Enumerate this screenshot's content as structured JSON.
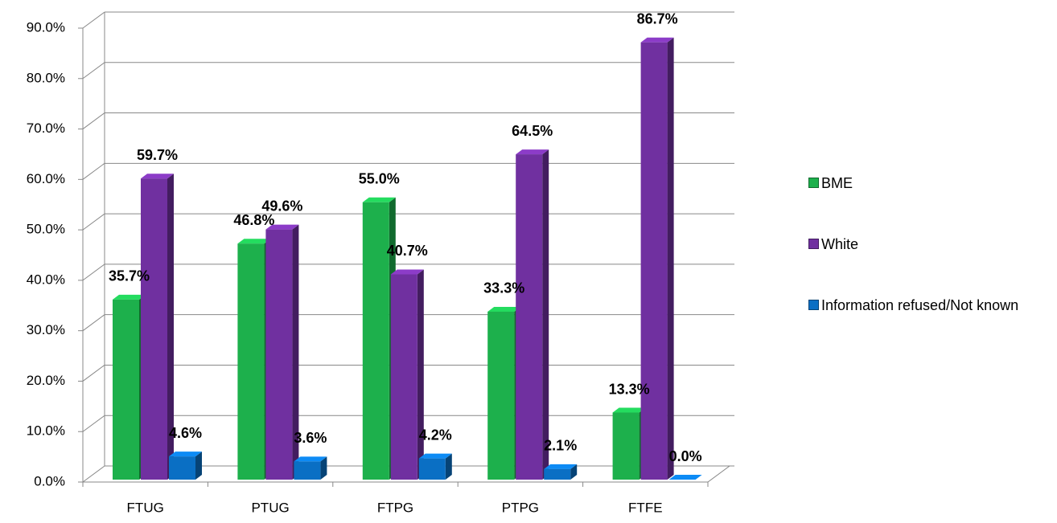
{
  "chart_data": {
    "type": "bar3d",
    "categories": [
      "FTUG",
      "PTUG",
      "FTPG",
      "PTPG",
      "FTFE"
    ],
    "series": [
      {
        "name": "BME",
        "color": "#1db04c",
        "values": [
          35.7,
          46.8,
          55.0,
          33.3,
          13.3
        ],
        "value_labels": [
          "35.7%",
          "46.8%",
          "55.0%",
          "33.3%",
          "13.3%"
        ]
      },
      {
        "name": "White",
        "color": "#7030a0",
        "values": [
          59.7,
          49.6,
          40.7,
          64.5,
          86.7
        ],
        "value_labels": [
          "59.7%",
          "49.6%",
          "40.7%",
          "64.5%",
          "86.7%"
        ]
      },
      {
        "name": "Information refused/Not known",
        "color": "#0a6fc4",
        "values": [
          4.6,
          3.6,
          4.2,
          2.1,
          0.0
        ],
        "value_labels": [
          "4.6%",
          "3.6%",
          "4.2%",
          "2.1%",
          "0.0%"
        ]
      }
    ],
    "ylim": [
      0,
      90
    ],
    "yticks": [
      {
        "value": 0,
        "label": "0.0%"
      },
      {
        "value": 10,
        "label": "10.0%"
      },
      {
        "value": 20,
        "label": "20.0%"
      },
      {
        "value": 30,
        "label": "30.0%"
      },
      {
        "value": 40,
        "label": "40.0%"
      },
      {
        "value": 50,
        "label": "50.0%"
      },
      {
        "value": 60,
        "label": "60.0%"
      },
      {
        "value": 70,
        "label": "70.0%"
      },
      {
        "value": 80,
        "label": "80.0%"
      },
      {
        "value": 90,
        "label": "90.0%"
      }
    ],
    "grid": true,
    "legend": "right"
  }
}
